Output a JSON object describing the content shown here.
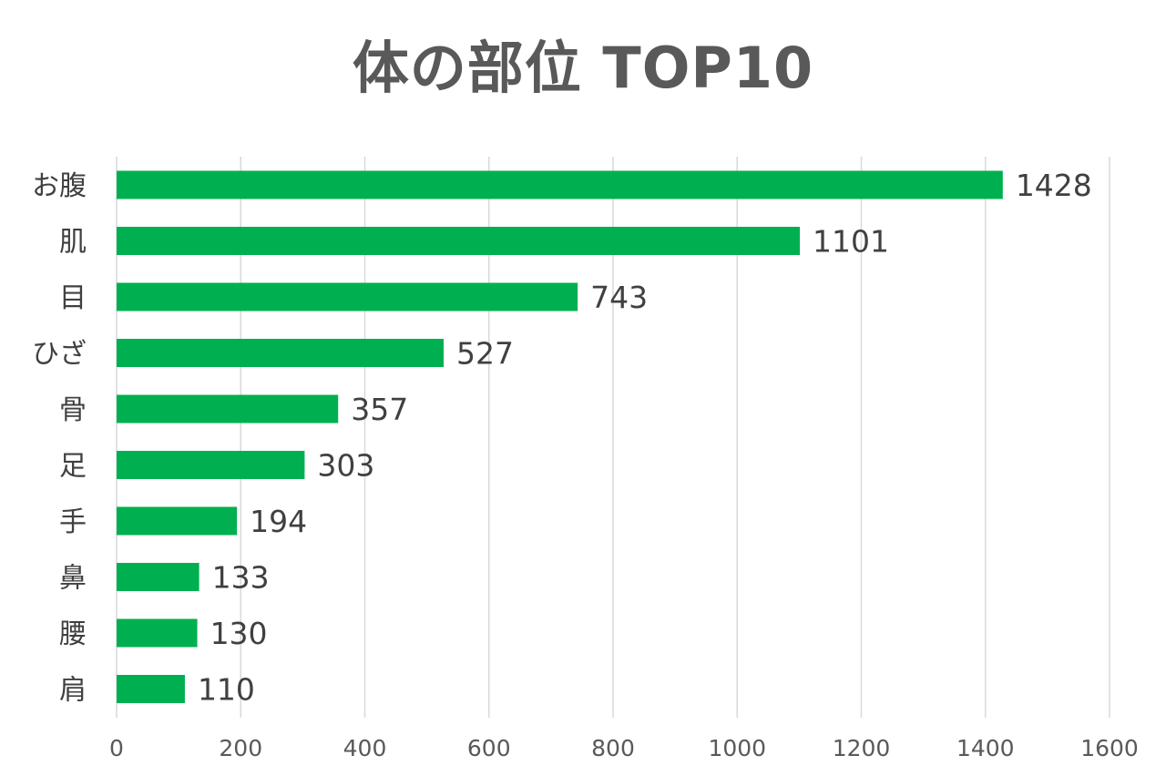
{
  "chart_data": {
    "type": "bar",
    "orientation": "horizontal",
    "title": "体の部位 TOP10",
    "xlabel": "",
    "ylabel": "",
    "categories": [
      "お腹",
      "肌",
      "目",
      "ひざ",
      "骨",
      "足",
      "手",
      "鼻",
      "腰",
      "肩"
    ],
    "values": [
      1428,
      1101,
      743,
      527,
      357,
      303,
      194,
      133,
      130,
      110
    ],
    "data_labels": [
      "1428",
      "1101",
      "743",
      "527",
      "357",
      "303",
      "194",
      "133",
      "130",
      "110"
    ],
    "xlim": [
      0,
      1600
    ],
    "x_ticks": [
      0,
      200,
      400,
      600,
      800,
      1000,
      1200,
      1400,
      1600
    ],
    "x_tick_labels": [
      "0",
      "200",
      "400",
      "600",
      "800",
      "1000",
      "1200",
      "1400",
      "1600"
    ],
    "grid": true,
    "legend": "none",
    "bar_color": "#00B050",
    "grid_color": "#D9D9D9"
  }
}
